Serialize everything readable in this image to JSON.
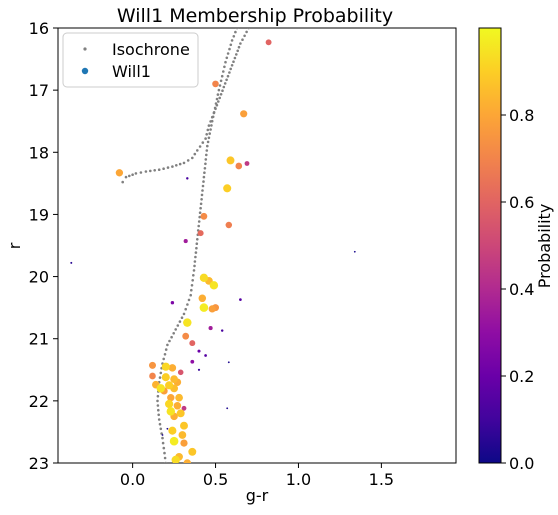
{
  "chart_data": {
    "type": "scatter",
    "title": "Will1 Membership Probability",
    "xlabel": "g-r",
    "ylabel": "r",
    "xlim": [
      -0.45,
      1.95
    ],
    "ylim": [
      23,
      16
    ],
    "y_inverted": true,
    "grid": false,
    "legend": {
      "placement": "top-left",
      "entries": [
        "Isochrone",
        "Will1"
      ]
    },
    "x_ticks": [
      {
        "value": 0.0,
        "label": "0.0"
      },
      {
        "value": 0.5,
        "label": "0.5"
      },
      {
        "value": 1.0,
        "label": "1.0"
      },
      {
        "value": 1.5,
        "label": "1.5"
      }
    ],
    "y_ticks": [
      {
        "value": 16,
        "label": "16"
      },
      {
        "value": 17,
        "label": "17"
      },
      {
        "value": 18,
        "label": "18"
      },
      {
        "value": 19,
        "label": "19"
      },
      {
        "value": 20,
        "label": "20"
      },
      {
        "value": 21,
        "label": "21"
      },
      {
        "value": 22,
        "label": "22"
      },
      {
        "value": 23,
        "label": "23"
      }
    ],
    "colorbar": {
      "label": "Probability",
      "colormap": "plasma",
      "range": [
        0,
        1
      ],
      "ticks": [
        {
          "value": 0.0,
          "label": "0.0"
        },
        {
          "value": 0.2,
          "label": "0.2"
        },
        {
          "value": 0.4,
          "label": "0.4"
        },
        {
          "value": 0.6,
          "label": "0.6"
        },
        {
          "value": 0.8,
          "label": "0.8"
        }
      ],
      "colors": [
        "#0d0887",
        "#41049d",
        "#6a00a8",
        "#8f0da4",
        "#b12a90",
        "#cc4778",
        "#e16462",
        "#f2844b",
        "#fca636",
        "#fcce25",
        "#f0f921"
      ]
    },
    "series": [
      {
        "name": "Isochrone",
        "color": "#808080",
        "anchors": [
          [
            -0.06,
            18.48
          ],
          [
            -0.04,
            18.4
          ],
          [
            0.02,
            18.34
          ],
          [
            0.08,
            18.31
          ],
          [
            0.16,
            18.28
          ],
          [
            0.24,
            18.23
          ],
          [
            0.31,
            18.17
          ],
          [
            0.36,
            18.09
          ],
          [
            0.39,
            17.97
          ],
          [
            0.44,
            17.78
          ],
          [
            0.46,
            17.57
          ],
          [
            0.5,
            17.3
          ],
          [
            0.55,
            16.95
          ],
          [
            0.6,
            16.6
          ],
          [
            0.65,
            16.25
          ],
          [
            0.7,
            16.0
          ]
        ],
        "anchors_lower": [
          [
            0.63,
            16.0
          ],
          [
            0.6,
            16.2
          ],
          [
            0.56,
            16.55
          ],
          [
            0.52,
            17.0
          ],
          [
            0.48,
            17.5
          ],
          [
            0.45,
            17.9
          ],
          [
            0.43,
            18.4
          ],
          [
            0.41,
            18.9
          ],
          [
            0.39,
            19.4
          ],
          [
            0.37,
            19.9
          ],
          [
            0.35,
            20.3
          ],
          [
            0.31,
            20.6
          ],
          [
            0.26,
            20.85
          ],
          [
            0.21,
            21.1
          ],
          [
            0.18,
            21.4
          ],
          [
            0.16,
            21.7
          ],
          [
            0.15,
            22.0
          ],
          [
            0.16,
            22.3
          ],
          [
            0.18,
            22.6
          ],
          [
            0.2,
            23.0
          ]
        ]
      },
      {
        "name": "Will1",
        "points": [
          [
            0.82,
            16.23,
            0.6
          ],
          [
            0.5,
            16.9,
            0.7
          ],
          [
            0.67,
            17.38,
            0.78
          ],
          [
            -0.08,
            18.33,
            0.8
          ],
          [
            0.59,
            18.13,
            0.88
          ],
          [
            0.64,
            18.22,
            0.7
          ],
          [
            0.69,
            18.18,
            0.45
          ],
          [
            0.33,
            18.42,
            0.12
          ],
          [
            0.57,
            18.58,
            0.9
          ],
          [
            0.43,
            19.03,
            0.72
          ],
          [
            0.58,
            19.17,
            0.68
          ],
          [
            0.41,
            19.3,
            0.62
          ],
          [
            0.32,
            19.43,
            0.35
          ],
          [
            -0.37,
            19.78,
            0.05
          ],
          [
            1.34,
            19.6,
            0.02
          ],
          [
            0.43,
            20.02,
            0.93
          ],
          [
            0.46,
            20.07,
            0.85
          ],
          [
            0.49,
            20.14,
            0.95
          ],
          [
            0.42,
            20.35,
            0.82
          ],
          [
            0.65,
            20.37,
            0.15
          ],
          [
            0.24,
            20.42,
            0.25
          ],
          [
            0.43,
            20.5,
            0.97
          ],
          [
            0.48,
            20.52,
            0.78
          ],
          [
            0.5,
            20.5,
            0.75
          ],
          [
            0.33,
            20.74,
            0.95
          ],
          [
            0.47,
            20.83,
            0.35
          ],
          [
            0.54,
            20.87,
            0.12
          ],
          [
            0.32,
            20.96,
            0.72
          ],
          [
            0.36,
            21.07,
            0.6
          ],
          [
            0.4,
            21.2,
            0.2
          ],
          [
            0.44,
            21.27,
            0.15
          ],
          [
            0.36,
            21.37,
            0.3
          ],
          [
            0.4,
            21.5,
            0.08
          ],
          [
            0.12,
            21.43,
            0.75
          ],
          [
            0.2,
            21.45,
            0.92
          ],
          [
            0.24,
            21.47,
            0.82
          ],
          [
            0.29,
            21.54,
            0.55
          ],
          [
            0.12,
            21.6,
            0.7
          ],
          [
            0.2,
            21.62,
            0.9
          ],
          [
            0.25,
            21.65,
            0.85
          ],
          [
            0.27,
            21.7,
            0.82
          ],
          [
            0.14,
            21.74,
            0.83
          ],
          [
            0.22,
            21.75,
            0.9
          ],
          [
            0.17,
            21.8,
            0.95
          ],
          [
            0.25,
            21.8,
            0.86
          ],
          [
            0.19,
            21.84,
            0.78
          ],
          [
            0.23,
            21.95,
            0.8
          ],
          [
            0.28,
            21.95,
            0.85
          ],
          [
            0.22,
            22.05,
            0.92
          ],
          [
            0.27,
            22.08,
            0.82
          ],
          [
            0.31,
            22.12,
            0.45
          ],
          [
            0.23,
            22.17,
            0.95
          ],
          [
            0.29,
            22.2,
            0.88
          ],
          [
            0.25,
            22.25,
            0.82
          ],
          [
            0.31,
            22.4,
            0.88
          ],
          [
            0.24,
            22.48,
            0.9
          ],
          [
            0.3,
            22.55,
            0.85
          ],
          [
            0.25,
            22.65,
            0.97
          ],
          [
            0.31,
            22.68,
            0.78
          ],
          [
            0.36,
            22.82,
            0.88
          ],
          [
            0.28,
            22.9,
            0.85
          ],
          [
            0.26,
            22.95,
            0.93
          ],
          [
            0.33,
            23.0,
            0.82
          ],
          [
            0.57,
            22.12,
            0.03
          ],
          [
            0.58,
            21.38,
            0.03
          ],
          [
            0.21,
            22.45,
            0.03
          ],
          [
            0.18,
            22.55,
            0.03
          ]
        ]
      }
    ]
  }
}
